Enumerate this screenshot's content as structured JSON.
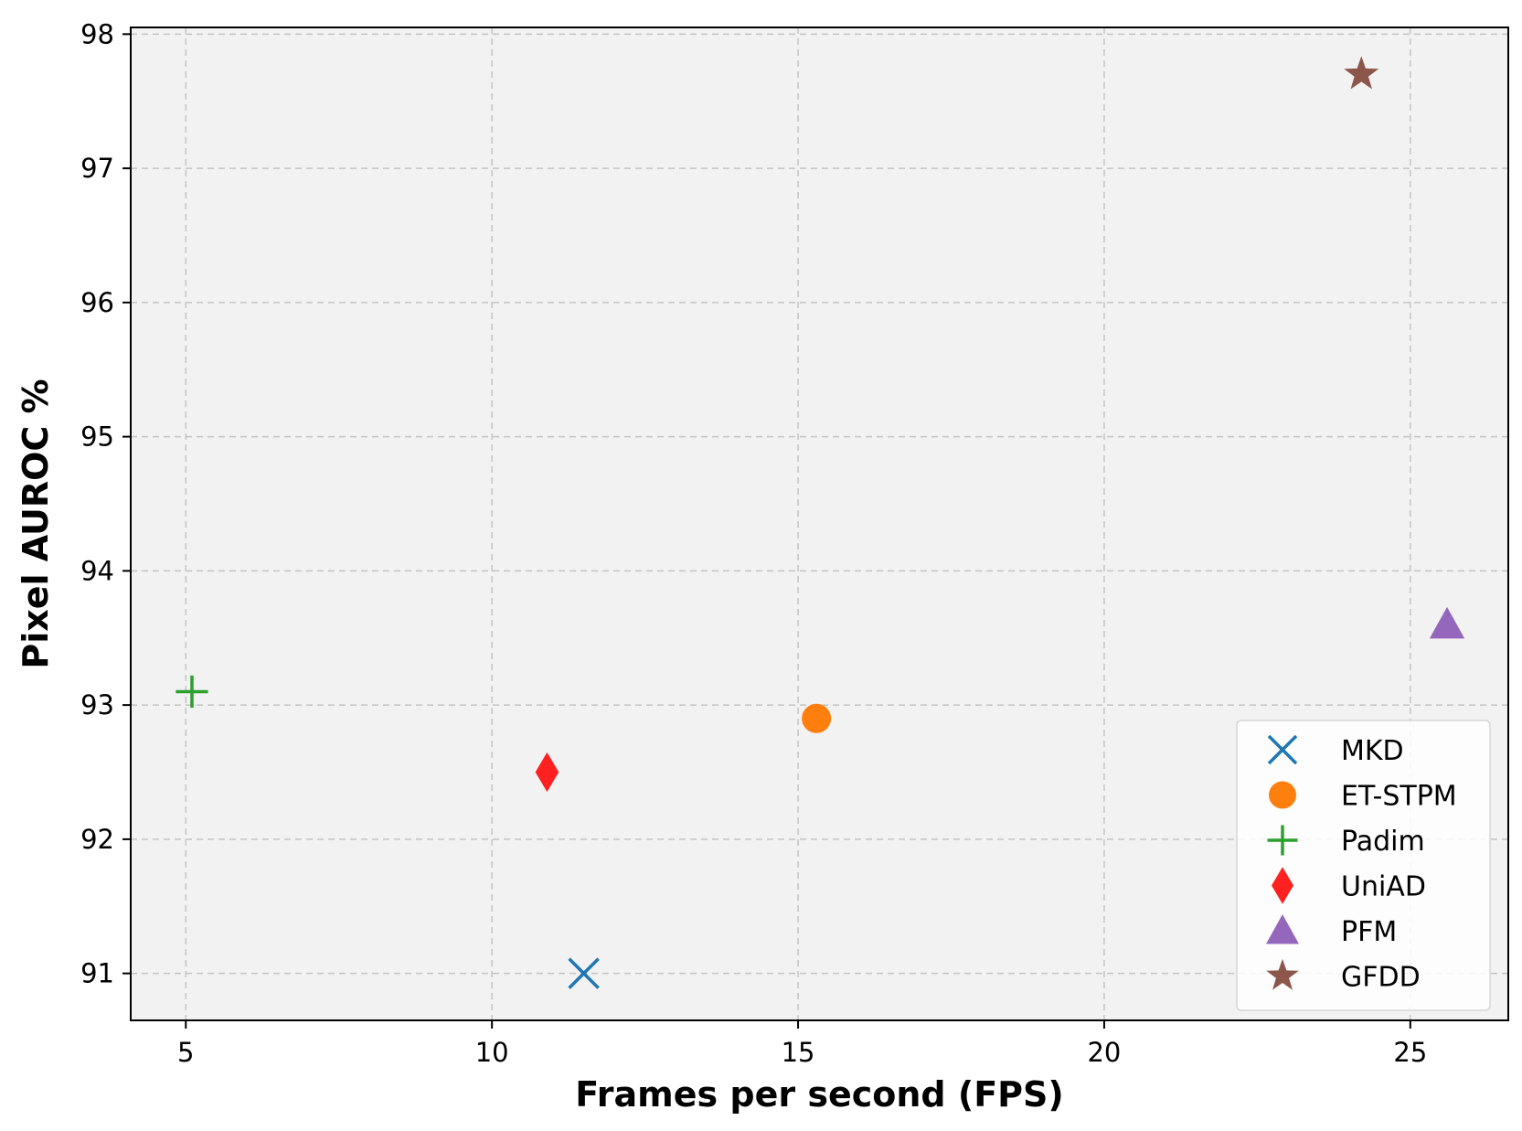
{
  "chart_data": {
    "type": "scatter",
    "xlabel": "Frames per second (FPS)",
    "ylabel": "Pixel AUROC %",
    "xlim": [
      4.1,
      26.6
    ],
    "ylim": [
      90.65,
      98.05
    ],
    "xticks": [
      "5",
      "10",
      "15",
      "20",
      "25"
    ],
    "yticks": [
      "91",
      "92",
      "93",
      "94",
      "95",
      "96",
      "97",
      "98"
    ],
    "grid": true,
    "legend_position": "bottom-right",
    "series": [
      {
        "name": "MKD",
        "marker": "x",
        "color": "#1f77b4",
        "points": [
          {
            "x": 11.5,
            "y": 91.0
          }
        ]
      },
      {
        "name": "ET-STPM",
        "marker": "circle",
        "color": "#ff7f0e",
        "points": [
          {
            "x": 15.3,
            "y": 92.9
          }
        ]
      },
      {
        "name": "Padim",
        "marker": "plus",
        "color": "#2ca02c",
        "points": [
          {
            "x": 5.1,
            "y": 93.1
          }
        ]
      },
      {
        "name": "UniAD",
        "marker": "diamond",
        "color": "#ff2020",
        "points": [
          {
            "x": 10.9,
            "y": 92.5
          }
        ]
      },
      {
        "name": "PFM",
        "marker": "triangle",
        "color": "#9467bd",
        "points": [
          {
            "x": 25.6,
            "y": 93.6
          }
        ]
      },
      {
        "name": "GFDD",
        "marker": "star",
        "color": "#8c564b",
        "points": [
          {
            "x": 24.2,
            "y": 97.7
          }
        ]
      }
    ]
  }
}
